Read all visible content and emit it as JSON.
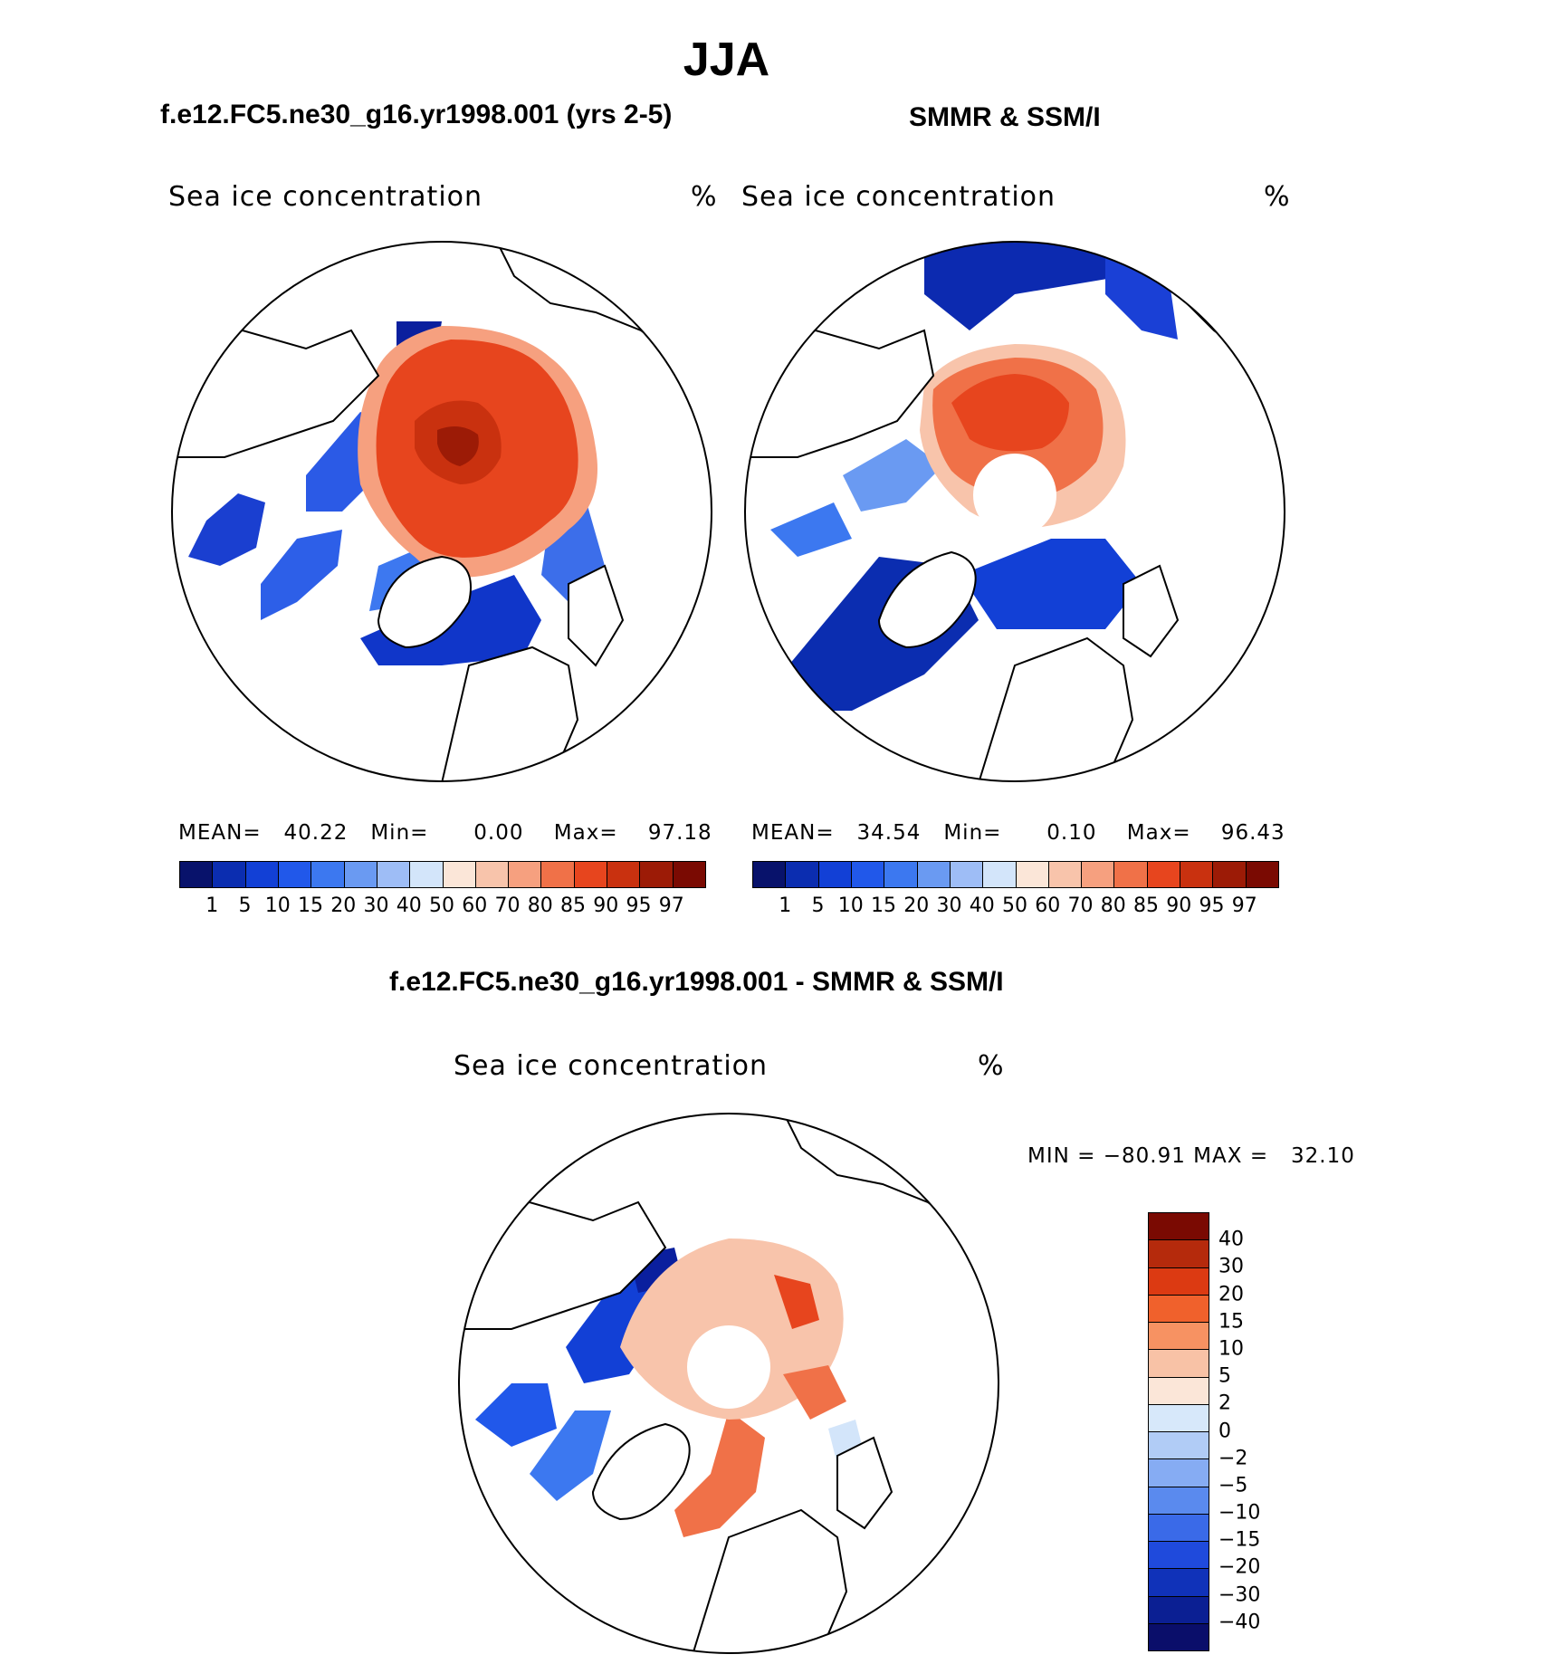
{
  "figure": {
    "season": "JJA"
  },
  "panels": {
    "model": {
      "header": "f.e12.FC5.ne30_g16.yr1998.001 (yrs 2-5)",
      "variable": "Sea ice concentration",
      "units": "%",
      "stats": {
        "mean_label": "MEAN=",
        "mean": "40.22",
        "min_label": "Min=",
        "min": "0.00",
        "max_label": "Max=",
        "max": "97.18"
      }
    },
    "obs": {
      "header": "SMMR & SSM/I",
      "variable": "Sea ice concentration",
      "units": "%",
      "stats": {
        "mean_label": "MEAN=",
        "mean": "34.54",
        "min_label": "Min=",
        "min": "0.10",
        "max_label": "Max=",
        "max": "96.43"
      }
    },
    "diff": {
      "header": "f.e12.FC5.ne30_g16.yr1998.001 - SMMR & SSM/I",
      "variable": "Sea ice concentration",
      "units": "%",
      "minmax": {
        "min_label": "MIN =",
        "min": "−80.91",
        "max_label": "MAX =",
        "max": "32.10"
      }
    }
  },
  "chart_data": [
    {
      "type": "heatmap",
      "projection": "north polar stereographic",
      "title": "Sea ice concentration",
      "units": "%",
      "colorbar": {
        "orientation": "horizontal",
        "levels": [
          "1",
          "5",
          "10",
          "15",
          "20",
          "30",
          "40",
          "50",
          "60",
          "70",
          "80",
          "85",
          "90",
          "95",
          "97"
        ],
        "colors": [
          "#08126b",
          "#0b2db0",
          "#1240d6",
          "#2158ea",
          "#3c78f0",
          "#6a9af2",
          "#9ebdf6",
          "#d3e5fa",
          "#fbe6d8",
          "#f8c4ab",
          "#f6a07f",
          "#f07148",
          "#e7451e",
          "#c9310f",
          "#9c1b06",
          "#7a0a02"
        ]
      },
      "stats": {
        "mean": 40.22,
        "min": 0.0,
        "max": 97.18
      }
    },
    {
      "type": "heatmap",
      "projection": "north polar stereographic",
      "title": "Sea ice concentration",
      "units": "%",
      "colorbar": {
        "orientation": "horizontal",
        "levels": [
          "1",
          "5",
          "10",
          "15",
          "20",
          "30",
          "40",
          "50",
          "60",
          "70",
          "80",
          "85",
          "90",
          "95",
          "97"
        ],
        "colors": [
          "#08126b",
          "#0b2db0",
          "#1240d6",
          "#2158ea",
          "#3c78f0",
          "#6a9af2",
          "#9ebdf6",
          "#d3e5fa",
          "#fbe6d8",
          "#f8c4ab",
          "#f6a07f",
          "#f07148",
          "#e7451e",
          "#c9310f",
          "#9c1b06",
          "#7a0a02"
        ]
      },
      "stats": {
        "mean": 34.54,
        "min": 0.1,
        "max": 96.43
      }
    },
    {
      "type": "heatmap",
      "projection": "north polar stereographic",
      "title": "Sea ice concentration",
      "units": "%",
      "colorbar": {
        "orientation": "vertical",
        "levels": [
          "40",
          "30",
          "20",
          "15",
          "10",
          "5",
          "2",
          "0",
          "−2",
          "−5",
          "−10",
          "−15",
          "−20",
          "−30",
          "−40"
        ],
        "colors": [
          "#7a0a02",
          "#b52a0c",
          "#dc3a12",
          "#f0612c",
          "#f79262",
          "#f8c2a6",
          "#fbe6d8",
          "#d7e8fa",
          "#b1ccf6",
          "#86acf3",
          "#5a8aee",
          "#3a6ae8",
          "#1f4adc",
          "#1032b9",
          "#0b1f93",
          "#0a0e6a"
        ]
      },
      "stats": {
        "min": -80.91,
        "max": 32.1
      }
    }
  ]
}
